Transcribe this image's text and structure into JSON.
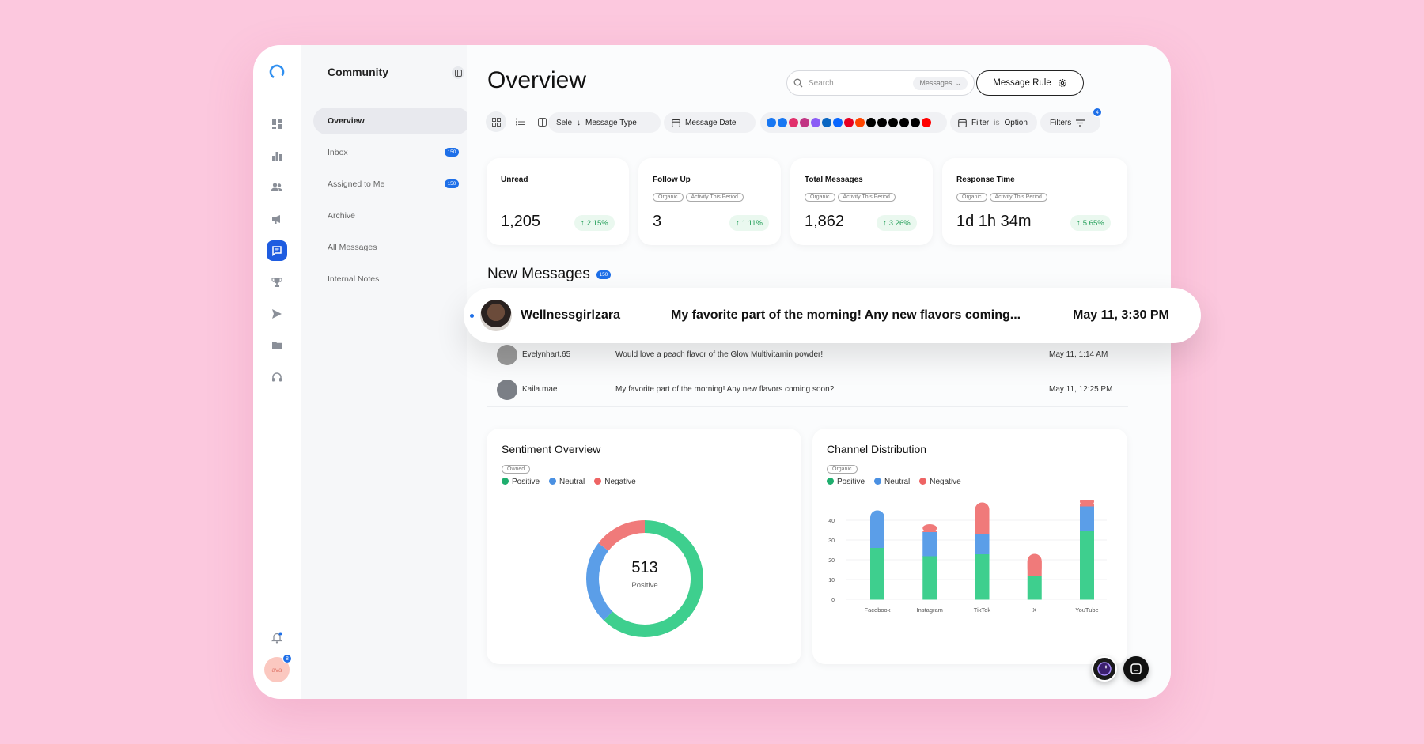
{
  "sidebar": {
    "title": "Community",
    "items": [
      {
        "label": "Overview",
        "badge": ""
      },
      {
        "label": "Inbox",
        "badge": "150"
      },
      {
        "label": "Assigned to Me",
        "badge": "150"
      },
      {
        "label": "Archive",
        "badge": ""
      },
      {
        "label": "All Messages",
        "badge": ""
      },
      {
        "label": "Internal Notes",
        "badge": ""
      }
    ]
  },
  "rail": {
    "icons": [
      "dashboard-icon",
      "bar-chart-icon",
      "users-icon",
      "megaphone-icon",
      "chat-icon",
      "trophy-icon",
      "send-icon",
      "folder-icon",
      "headset-icon"
    ],
    "avatar_text": "ava",
    "avatar_badge": "8"
  },
  "header": {
    "title": "Overview",
    "search_placeholder": "Search",
    "search_scope": "Messages",
    "message_rule": "Message Rule"
  },
  "toolbar": {
    "select_label": "Sele",
    "message_type": "Message Type",
    "message_date": "Message Date",
    "filter_label": "Filter",
    "filter_is": "is",
    "filter_value": "Option",
    "filters": "Filters",
    "filters_count": "4",
    "channel_colors": [
      "#1877f2",
      "#1877f2",
      "#e1306c",
      "#c13584",
      "#8b5cf6",
      "#0a66c2",
      "#0866ff",
      "#e60023",
      "#ff4500",
      "#000000",
      "#000000",
      "#000000",
      "#000000",
      "#000000",
      "#ff0000"
    ]
  },
  "stats": [
    {
      "label": "Unread",
      "tags": [],
      "value": "1,205",
      "delta": "2.15%"
    },
    {
      "label": "Follow Up",
      "tags": [
        "Organic",
        "Activity This Period"
      ],
      "value": "3",
      "delta": "1.11%"
    },
    {
      "label": "Total Messages",
      "tags": [
        "Organic",
        "Activity This Period"
      ],
      "value": "1,862",
      "delta": "3.26%"
    },
    {
      "label": "Response Time",
      "tags": [
        "Organic",
        "Activity This Period"
      ],
      "value": "1d 1h 34m",
      "delta": "5.65%"
    }
  ],
  "messages": {
    "title": "New Messages",
    "badge": "150",
    "featured": {
      "name": "Wellnessgirlzara",
      "text": "My favorite part of the morning! Any new flavors coming...",
      "date": "May 11, 3:30 PM"
    },
    "rows": [
      {
        "name": "Evelynhart.65",
        "text": "Would love a peach flavor of the Glow Multivitamin powder!",
        "date": "May 11, 1:14 AM"
      },
      {
        "name": "Kaila.mae",
        "text": "My favorite part of the morning! Any new flavors coming soon?",
        "date": "May 11, 12:25 PM"
      }
    ]
  },
  "sentiment": {
    "title": "Sentiment Overview",
    "tag": "Owned",
    "legend": [
      "Positive",
      "Neutral",
      "Negative"
    ],
    "center_value": "513",
    "center_label": "Positive"
  },
  "channel": {
    "title": "Channel Distribution",
    "tag": "Organic",
    "legend": [
      "Positive",
      "Neutral",
      "Negative"
    ]
  },
  "colors": {
    "positive": "#3ecf8e",
    "neutral": "#5b9ee8",
    "negative": "#f07a7a",
    "accent": "#1e5ce0"
  },
  "chart_data": [
    {
      "type": "pie",
      "title": "Sentiment Overview",
      "labels": [
        "Positive",
        "Neutral",
        "Negative"
      ],
      "values": [
        513,
        190,
        120
      ]
    },
    {
      "type": "bar",
      "title": "Channel Distribution",
      "categories": [
        "Facebook",
        "Instagram",
        "TikTok",
        "X",
        "YouTube"
      ],
      "ylim": [
        0,
        40
      ],
      "yticks": [
        0,
        10,
        20,
        30,
        40
      ],
      "series": [
        {
          "name": "Positive",
          "values": [
            26,
            22,
            23,
            12,
            35
          ]
        },
        {
          "name": "Neutral",
          "values": [
            19,
            12,
            10,
            0,
            12
          ]
        },
        {
          "name": "Negative",
          "values": [
            0,
            4,
            16,
            11,
            5
          ]
        }
      ]
    }
  ]
}
